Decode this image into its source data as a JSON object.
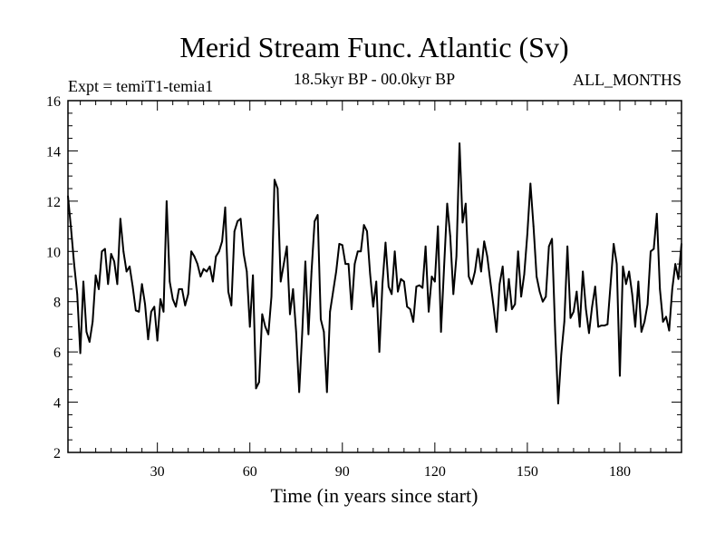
{
  "chart_data": {
    "type": "line",
    "title": "Merid Stream Func. Atlantic (Sv)",
    "left_subtitle": "Expt = temiT1-temia1",
    "center_subtitle": "18.5kyr BP - 00.0kyr BP",
    "right_subtitle": "ALL_MONTHS",
    "xlabel": "Time (in years since start)",
    "ylabel": "",
    "xlim": [
      1,
      200
    ],
    "ylim": [
      2,
      16
    ],
    "x_ticks": [
      30,
      60,
      90,
      120,
      150,
      180
    ],
    "x_tick_labels": [
      "30",
      "60",
      "90",
      "120",
      "150",
      "180"
    ],
    "y_ticks": [
      2,
      4,
      6,
      8,
      10,
      12,
      14,
      16
    ],
    "y_tick_labels": [
      "2",
      "4",
      "6",
      "8",
      "10",
      "12",
      "14",
      "16"
    ],
    "series": [
      {
        "name": "Merid Stream Func. Atlantic",
        "color": "#000000",
        "x_start": 1,
        "x_step": 1,
        "values": [
          12.2,
          10.9,
          9.5,
          8.3,
          5.95,
          8.8,
          6.8,
          6.4,
          7.2,
          9.05,
          8.5,
          10.0,
          10.1,
          8.7,
          9.9,
          9.6,
          8.7,
          11.3,
          10.0,
          9.2,
          9.4,
          8.6,
          7.65,
          7.6,
          8.7,
          7.9,
          6.5,
          7.6,
          7.8,
          6.45,
          8.1,
          7.6,
          12.0,
          8.8,
          8.1,
          7.8,
          8.5,
          8.5,
          7.85,
          8.3,
          10.0,
          9.8,
          9.5,
          9.0,
          9.3,
          9.2,
          9.4,
          8.8,
          9.8,
          10.0,
          10.4,
          11.75,
          8.4,
          7.85,
          10.8,
          11.2,
          11.3,
          9.9,
          9.2,
          7.0,
          9.05,
          4.55,
          4.8,
          7.5,
          7.0,
          6.7,
          8.2,
          12.85,
          12.5,
          8.8,
          9.5,
          10.2,
          7.5,
          8.5,
          6.8,
          4.4,
          6.8,
          9.6,
          6.7,
          9.2,
          11.2,
          11.45,
          7.3,
          6.8,
          4.4,
          7.6,
          8.4,
          9.2,
          10.3,
          10.25,
          9.5,
          9.5,
          7.7,
          9.5,
          10.0,
          10.0,
          11.05,
          10.8,
          9.1,
          7.8,
          8.8,
          6.0,
          8.7,
          10.35,
          8.6,
          8.3,
          10.0,
          8.4,
          8.9,
          8.8,
          7.8,
          7.7,
          7.2,
          8.6,
          8.65,
          8.55,
          10.2,
          7.6,
          9.0,
          8.8,
          11.0,
          6.8,
          9.4,
          11.9,
          10.6,
          8.3,
          9.8,
          14.3,
          11.15,
          11.9,
          9.0,
          8.7,
          9.2,
          10.1,
          9.2,
          10.4,
          9.8,
          8.8,
          7.85,
          6.8,
          8.7,
          9.4,
          7.65,
          8.9,
          7.7,
          7.9,
          10.0,
          8.2,
          9.1,
          10.7,
          12.7,
          11.0,
          9.0,
          8.4,
          8.0,
          8.2,
          10.2,
          10.5,
          6.9,
          3.95,
          5.9,
          7.2,
          10.2,
          7.35,
          7.6,
          8.4,
          7.0,
          9.2,
          7.7,
          6.75,
          7.8,
          8.6,
          7.0,
          7.05,
          7.05,
          7.1,
          8.7,
          10.3,
          9.5,
          5.05,
          9.4,
          8.7,
          9.2,
          8.3,
          7.0,
          8.8,
          6.8,
          7.2,
          7.9,
          10.0,
          10.1,
          11.5,
          8.5,
          7.2,
          7.4,
          6.85,
          8.5,
          9.5,
          8.9,
          10.3
        ]
      }
    ]
  }
}
